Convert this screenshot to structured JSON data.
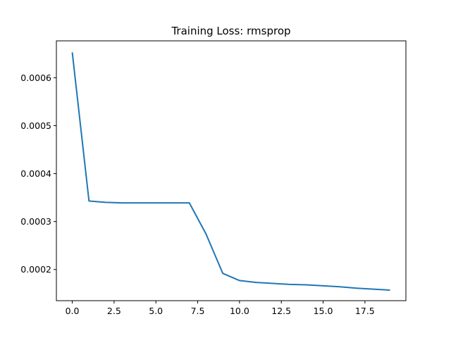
{
  "chart_data": {
    "type": "line",
    "title": "Training Loss: rmsprop",
    "xlabel": "",
    "ylabel": "",
    "xlim": [
      -0.95,
      19.95
    ],
    "ylim": [
      0.000135,
      0.000677
    ],
    "grid": false,
    "x_ticks": [
      0,
      2.5,
      5,
      7.5,
      10,
      12.5,
      15,
      17.5
    ],
    "x_tick_labels": [
      "0.0",
      "2.5",
      "5.0",
      "7.5",
      "10.0",
      "12.5",
      "15.0",
      "17.5"
    ],
    "y_ticks": [
      0.0002,
      0.0003,
      0.0004,
      0.0005,
      0.0006
    ],
    "y_tick_labels": [
      "0.0002",
      "0.0003",
      "0.0004",
      "0.0005",
      "0.0006"
    ],
    "series": [
      {
        "color": "#1f77b4",
        "x": [
          0,
          1,
          2,
          3,
          4,
          5,
          6,
          7,
          8,
          9,
          10,
          11,
          12,
          13,
          14,
          15,
          16,
          17,
          18,
          19
        ],
        "y": [
          0.000653,
          0.000343,
          0.00034,
          0.000339,
          0.000339,
          0.000339,
          0.000339,
          0.000339,
          0.000274,
          0.000192,
          0.000177,
          0.000173,
          0.000171,
          0.000169,
          0.000168,
          0.000166,
          0.000164,
          0.000161,
          0.000159,
          0.000157
        ]
      }
    ]
  }
}
